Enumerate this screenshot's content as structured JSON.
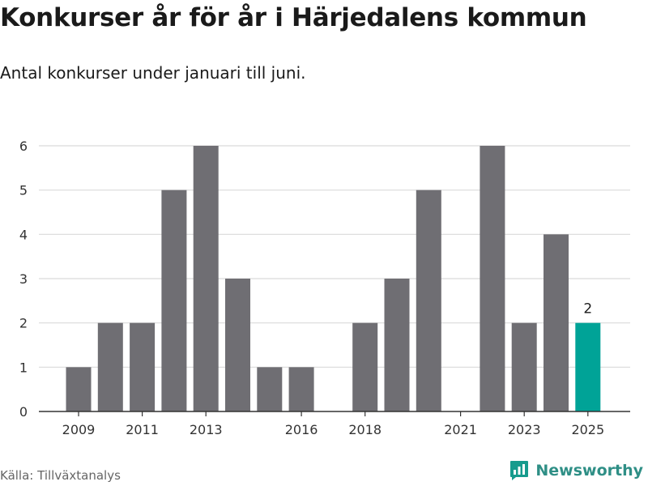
{
  "title": "Konkurser år för år i Härjedalens kommun",
  "subtitle": "Antal konkurser under januari till juni.",
  "source": "Källa: Tillväxtanalys",
  "brand": {
    "name": "Newsworthy",
    "icon": "bar-chart-logo-icon",
    "color": "#169b8d"
  },
  "colors": {
    "bar": "#6f6e73",
    "highlight": "#00a397",
    "grid": "#d9d9d9",
    "axis": "#333333",
    "text": "#333333"
  },
  "chart_data": {
    "type": "bar",
    "categories": [
      "2009",
      "2010",
      "2011",
      "2012",
      "2013",
      "2014",
      "2015",
      "2016",
      "2017",
      "2018",
      "2019",
      "2020",
      "2021",
      "2022",
      "2023",
      "2024",
      "2025"
    ],
    "values": [
      1,
      2,
      2,
      5,
      6,
      3,
      1,
      1,
      0,
      2,
      3,
      5,
      0,
      6,
      2,
      4,
      2
    ],
    "highlight_category": "2025",
    "data_labels": [
      {
        "category": "2025",
        "text": "2"
      }
    ],
    "x_tick_labels": [
      "2009",
      "2011",
      "2013",
      "2016",
      "2018",
      "2021",
      "2023",
      "2025"
    ],
    "y_ticks": [
      "0",
      "1",
      "2",
      "3",
      "4",
      "5",
      "6"
    ],
    "ylim": [
      0,
      6
    ],
    "grid": true,
    "legend": "none",
    "xlabel": "",
    "ylabel": ""
  }
}
